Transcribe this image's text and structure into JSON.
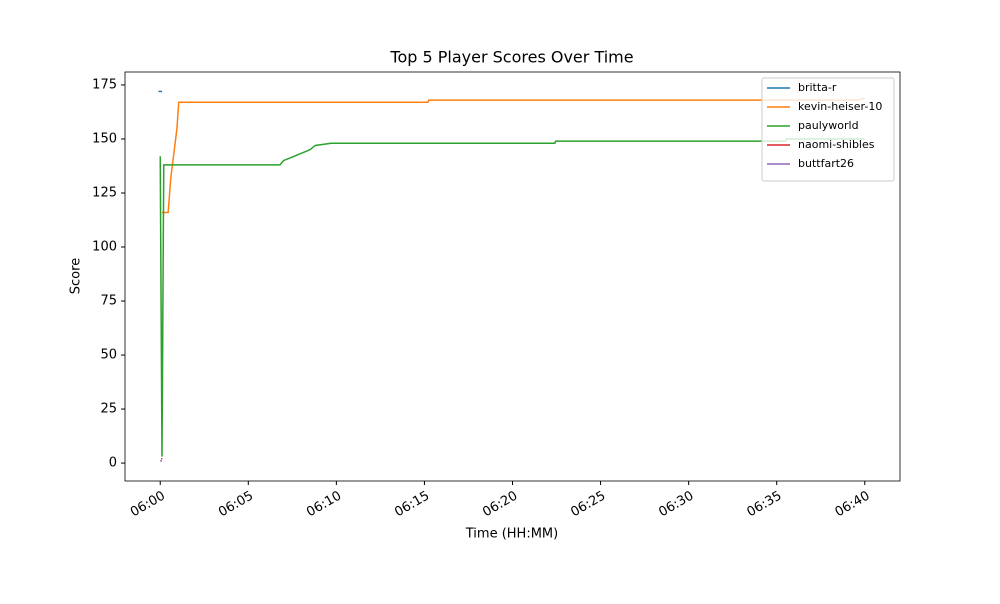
{
  "chart_data": {
    "type": "line",
    "title": "Top 5 Player Scores Over Time",
    "x_label": "Time (HH:MM)",
    "y_label": "Score",
    "xlim": [
      -2,
      42
    ],
    "xticks": [
      {
        "value": 0,
        "label": "06:00"
      },
      {
        "value": 5,
        "label": "06:05"
      },
      {
        "value": 10,
        "label": "06:10"
      },
      {
        "value": 15,
        "label": "06:15"
      },
      {
        "value": 20,
        "label": "06:20"
      },
      {
        "value": 25,
        "label": "06:25"
      },
      {
        "value": 30,
        "label": "06:30"
      },
      {
        "value": 35,
        "label": "06:35"
      },
      {
        "value": 40,
        "label": "06:40"
      }
    ],
    "ylim": [
      -8.3,
      181
    ],
    "yticks": [
      0,
      25,
      50,
      75,
      100,
      125,
      150,
      175
    ],
    "legend": "upper right",
    "series": [
      {
        "name": "britta-r",
        "color": "#1f77b4",
        "x": [
          -0.1,
          0.1
        ],
        "values": [
          172,
          172
        ]
      },
      {
        "name": "kevin-heiser-10",
        "color": "#ff7f0e",
        "x": [
          0.1,
          0.45,
          0.6,
          0.8,
          0.95,
          1.05,
          15.2,
          15.25,
          39.6,
          40
        ],
        "values": [
          116,
          116,
          132,
          145,
          155,
          167,
          167,
          168,
          168,
          169
        ]
      },
      {
        "name": "paulyworld",
        "color": "#2ca02c",
        "x": [
          0,
          0.1,
          0.2,
          6.8,
          7.0,
          7.3,
          7.6,
          7.9,
          8.2,
          8.5,
          8.8,
          9.7,
          22.4,
          22.45,
          35.5,
          35.55,
          40
        ],
        "values": [
          142,
          3,
          138,
          138,
          140,
          141,
          142,
          143,
          144,
          145,
          147,
          148,
          148,
          149,
          149,
          150,
          150
        ]
      },
      {
        "name": "naomi-shibles",
        "color": "#d62728",
        "x": [
          0.05,
          0.12
        ],
        "values": [
          2,
          2
        ]
      },
      {
        "name": "buttfart26",
        "color": "#9467bd",
        "x": [
          0,
          0.1
        ],
        "values": [
          1,
          1
        ]
      }
    ]
  }
}
